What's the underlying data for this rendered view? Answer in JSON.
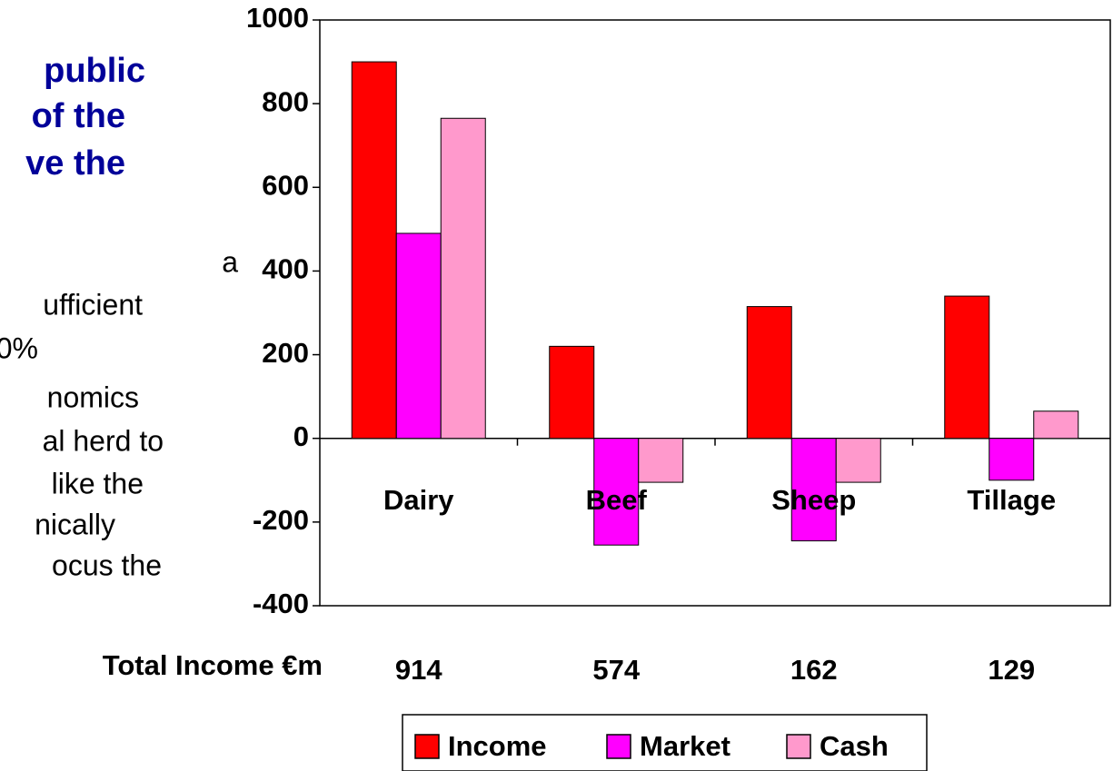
{
  "left_text": {
    "heading": [
      "public",
      "of the",
      "ve the"
    ],
    "body": [
      "a",
      "ufficient",
      "0%",
      "nomics",
      "al herd to",
      "like the",
      "nically",
      "ocus the"
    ]
  },
  "chart_data": {
    "type": "bar",
    "categories": [
      "Dairy",
      "Beef",
      "Sheep",
      "Tillage"
    ],
    "series": [
      {
        "name": "Income",
        "color": "#ff0000",
        "values": [
          900,
          220,
          315,
          340
        ]
      },
      {
        "name": "Market",
        "color": "#ff00ff",
        "values": [
          490,
          -255,
          -245,
          -100
        ]
      },
      {
        "name": "Cash",
        "color": "#ff99cc",
        "values": [
          765,
          -105,
          -105,
          65
        ]
      }
    ],
    "ylim": [
      -400,
      1000
    ],
    "yticks": [
      -400,
      -200,
      0,
      200,
      400,
      600,
      800,
      1000
    ],
    "grid": false,
    "legend": "bottom",
    "total_income": {
      "label": "Total Income €m",
      "values": [
        914,
        574,
        162,
        129
      ]
    }
  }
}
